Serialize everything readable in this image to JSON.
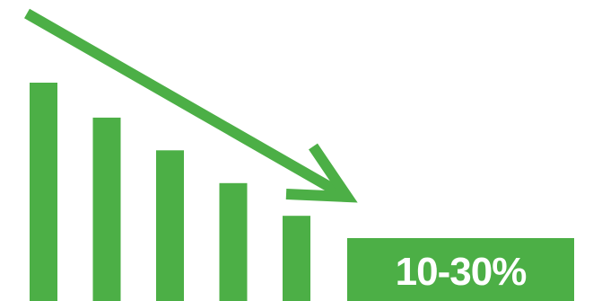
{
  "colors": {
    "accent": "#4caf46",
    "text_on_accent": "#ffffff",
    "background": "#ffffff"
  },
  "chart_data": {
    "type": "bar",
    "categories": [
      "",
      "",
      "",
      "",
      ""
    ],
    "values": [
      100,
      84,
      69,
      54,
      39
    ],
    "ylim": [
      0,
      100
    ],
    "grid": false,
    "legend": "none",
    "trend_arrow": "downward",
    "annotation": "10-30%"
  }
}
